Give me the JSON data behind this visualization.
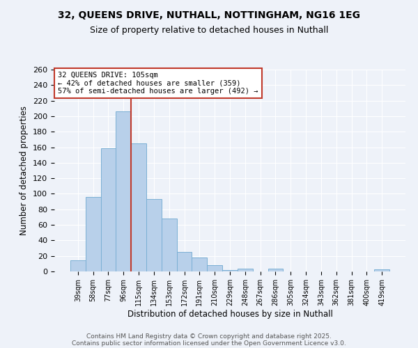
{
  "title": "32, QUEENS DRIVE, NUTHALL, NOTTINGHAM, NG16 1EG",
  "subtitle": "Size of property relative to detached houses in Nuthall",
  "xlabel": "Distribution of detached houses by size in Nuthall",
  "ylabel": "Number of detached properties",
  "categories": [
    "39sqm",
    "58sqm",
    "77sqm",
    "96sqm",
    "115sqm",
    "134sqm",
    "153sqm",
    "172sqm",
    "191sqm",
    "210sqm",
    "229sqm",
    "248sqm",
    "267sqm",
    "286sqm",
    "305sqm",
    "324sqm",
    "343sqm",
    "362sqm",
    "381sqm",
    "400sqm",
    "419sqm"
  ],
  "values": [
    14,
    96,
    159,
    206,
    165,
    93,
    68,
    25,
    18,
    8,
    2,
    4,
    0,
    4,
    0,
    0,
    0,
    0,
    0,
    0,
    3
  ],
  "bar_color": "#b8d0ea",
  "bar_edge_color": "#7aafd4",
  "vline_x_index": 4,
  "vline_color": "#c0392b",
  "annotation_title": "32 QUEENS DRIVE: 105sqm",
  "annotation_line1": "← 42% of detached houses are smaller (359)",
  "annotation_line2": "57% of semi-detached houses are larger (492) →",
  "annotation_box_edgecolor": "#c0392b",
  "ylim": [
    0,
    260
  ],
  "yticks": [
    0,
    20,
    40,
    60,
    80,
    100,
    120,
    140,
    160,
    180,
    200,
    220,
    240,
    260
  ],
  "background_color": "#eef2f9",
  "grid_color": "#ffffff",
  "footer_line1": "Contains HM Land Registry data © Crown copyright and database right 2025.",
  "footer_line2": "Contains public sector information licensed under the Open Government Licence v3.0."
}
